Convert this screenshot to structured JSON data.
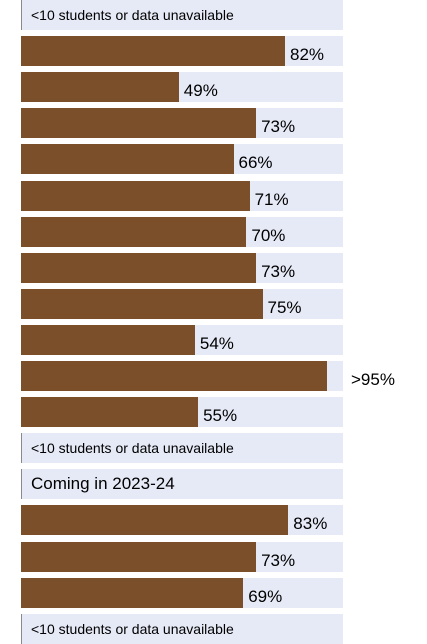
{
  "chart_data": {
    "type": "bar",
    "orientation": "horizontal",
    "title": "",
    "xlabel": "",
    "ylabel": "",
    "xlim": [
      0,
      100
    ],
    "grid": false,
    "legend": "none",
    "colors": {
      "bar": "#7b4f2a",
      "track": "#e6e9f6",
      "divider": "#8a8a8a"
    },
    "rows": [
      {
        "value": null,
        "label": "",
        "note": "<10 students or data unavailable"
      },
      {
        "value": 82,
        "label": "82%",
        "note": ""
      },
      {
        "value": 49,
        "label": "49%",
        "note": ""
      },
      {
        "value": 73,
        "label": "73%",
        "note": ""
      },
      {
        "value": 66,
        "label": "66%",
        "note": ""
      },
      {
        "value": 71,
        "label": "71%",
        "note": ""
      },
      {
        "value": 70,
        "label": "70%",
        "note": ""
      },
      {
        "value": 73,
        "label": "73%",
        "note": ""
      },
      {
        "value": 75,
        "label": "75%",
        "note": ""
      },
      {
        "value": 54,
        "label": "54%",
        "note": ""
      },
      {
        "value": 95,
        "label": ">95%",
        "note": ""
      },
      {
        "value": 55,
        "label": "55%",
        "note": ""
      },
      {
        "value": null,
        "label": "",
        "note": "<10 students or data unavailable"
      },
      {
        "value": null,
        "label": "",
        "note": "Coming in 2023-24"
      },
      {
        "value": 83,
        "label": "83%",
        "note": ""
      },
      {
        "value": 73,
        "label": "73%",
        "note": ""
      },
      {
        "value": 69,
        "label": "69%",
        "note": ""
      },
      {
        "value": null,
        "label": "",
        "note": "<10 students or data unavailable"
      }
    ]
  }
}
